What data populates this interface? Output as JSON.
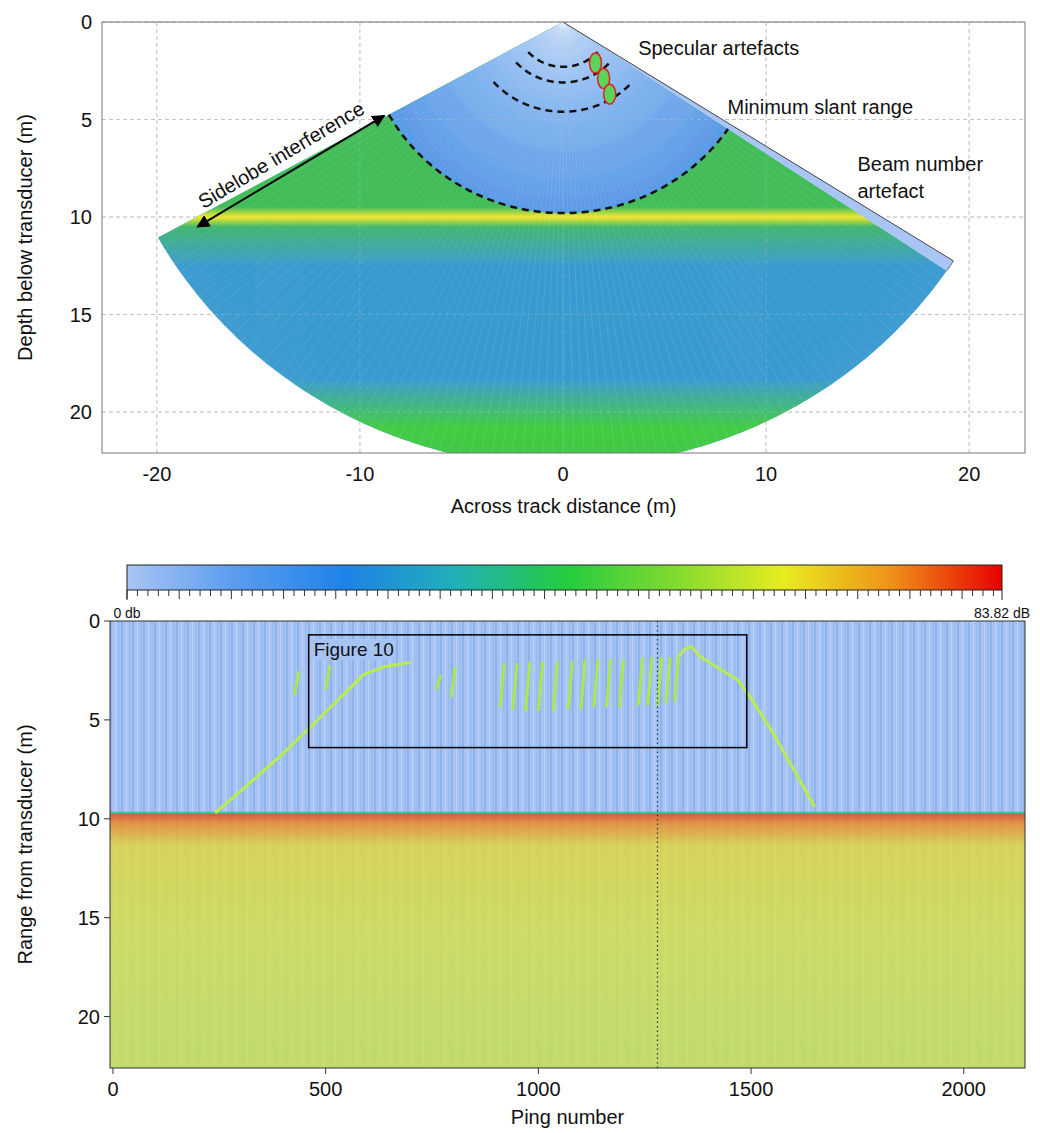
{
  "chart_data": [
    {
      "type": "fan",
      "xlabel": "Across track distance (m)",
      "ylabel": "Depth below transducer (m)",
      "xlim": [
        -22.7,
        22.75
      ],
      "ylim": [
        0,
        22.1
      ],
      "xticks": [
        -20,
        -10,
        0,
        10,
        20
      ],
      "yticks": [
        0,
        5,
        10,
        15,
        20
      ],
      "grid": true,
      "swath_angles": [
        -61,
        56
      ],
      "artefact_angle": 57.5,
      "max_range": 22.8,
      "min_slant_range": 9.8,
      "seabed_depth": 10,
      "bottom_band_depth": 20.8,
      "specular_arcs": [
        2.3,
        3.1,
        4.6
      ],
      "specular_arc_angles": [
        -48,
        48
      ],
      "specular_blobs": {
        "x": [
          1.6,
          2.0,
          2.3
        ],
        "y": [
          2.1,
          2.9,
          3.7
        ]
      },
      "sidelobe_arrow": {
        "label": "Sidelobe interference",
        "x": [
          -8.8,
          -18
        ],
        "y": [
          4.8,
          10.5
        ]
      },
      "annotations": [
        {
          "text": "Specular artefacts",
          "x": 3.7,
          "y": 1.33
        },
        {
          "text": "Minimum slant range",
          "x": 8.1,
          "y": 4.35
        },
        {
          "text": "Beam number artefact",
          "x": 14.5,
          "y": 7.3
        }
      ]
    },
    {
      "type": "colorbar",
      "xlim": [
        0,
        83.82
      ],
      "xticks": [
        {
          "value": 0,
          "label": "0 db"
        },
        {
          "value": 83.82,
          "label": "83.82 dB"
        }
      ],
      "minor_tick_step": 1,
      "colors": [
        "#a8c4f4",
        "#5a9cf0",
        "#1e82e8",
        "#20b0b8",
        "#22cc40",
        "#80da30",
        "#e8ec20",
        "#f09018",
        "#e80000"
      ]
    },
    {
      "type": "echogram",
      "xlabel": "Ping number",
      "ylabel": "Range from transducer (m)",
      "xlim": [
        -7,
        2144
      ],
      "ylim": [
        0,
        22.6
      ],
      "xticks": [
        0,
        500,
        1000,
        1500,
        2000
      ],
      "yticks": [
        0,
        5,
        10,
        15,
        20
      ],
      "seabed_range": 9.7,
      "trace": {
        "color": "#b8ec50",
        "x": [
          240,
          300,
          400,
          500,
          590,
          640,
          700,
          null,
          1330,
          1345,
          1360,
          1380,
          1410,
          1440,
          1470,
          1500,
          1550,
          1600,
          1650
        ],
        "y": [
          9.7,
          8.6,
          6.7,
          4.6,
          2.7,
          2.3,
          2.1,
          null,
          1.8,
          1.4,
          1.3,
          1.8,
          2.2,
          2.6,
          3.0,
          3.9,
          5.6,
          7.5,
          9.4
        ]
      },
      "streaks": {
        "color": "#a8e850",
        "x": [
          432,
          505,
          765,
          800,
          915,
          945,
          975,
          1005,
          1040,
          1075,
          1105,
          1135,
          1165,
          1195,
          1240,
          1262,
          1285,
          1305,
          1325
        ],
        "top": [
          2.6,
          2.3,
          2.8,
          2.4,
          2.2,
          2.2,
          2.1,
          2.1,
          2.1,
          2.1,
          2.0,
          2.0,
          2.0,
          2.0,
          1.9,
          1.9,
          1.9,
          1.9,
          1.8
        ],
        "bottom": [
          3.7,
          3.4,
          3.4,
          3.8,
          4.3,
          4.4,
          4.5,
          4.5,
          4.5,
          4.4,
          4.4,
          4.3,
          4.3,
          4.3,
          4.2,
          4.2,
          4.2,
          4.1,
          4.0
        ]
      },
      "marker_ping": 1280,
      "box": {
        "label": "Figure 10",
        "x": [
          460,
          1490
        ],
        "y": [
          0.7,
          6.4
        ]
      }
    }
  ]
}
